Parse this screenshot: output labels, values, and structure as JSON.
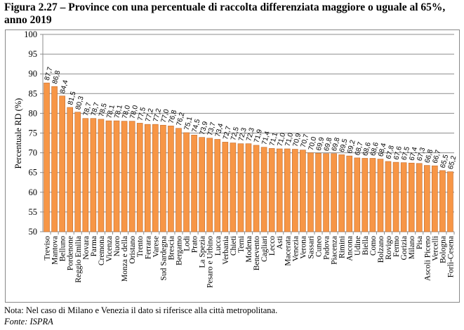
{
  "chart_data": {
    "type": "bar",
    "title": "Figura 2.27 – Province con una percentuale di raccolta differenziata maggiore o uguale al 65%, anno 2019",
    "xlabel": "",
    "ylabel": "Percentuale RD (%)",
    "ylim": [
      50,
      100
    ],
    "yticks": [
      50,
      55,
      60,
      65,
      70,
      75,
      80,
      85,
      90,
      95,
      100
    ],
    "grid": "horizontal",
    "bar_color": "#F79646",
    "bar_edge_color": "#C0692A",
    "categories": [
      "Treviso",
      "Mantova",
      "Belluno",
      "Pordenone",
      "Reggio Emilia",
      "Novara",
      "Parma",
      "Cremona",
      "Vicenza",
      "Nuoro",
      "Monza e della",
      "Oristano",
      "Trento",
      "Ferrara",
      "Varese",
      "Sud Sardegna",
      "Brescia",
      "Bergamo",
      "Lodi",
      "Prato",
      "La Spezia",
      "Pesaro e Urbino",
      "Lucca",
      "Verbania",
      "Chieti",
      "Terni",
      "Modena",
      "Benevento",
      "Cagliari",
      "Lecco",
      "Asti",
      "Macerata",
      "Venezia",
      "Verona",
      "Sassari",
      "Cuneo",
      "Padova",
      "Piacenza",
      "Rimini",
      "Ancona",
      "Udine",
      "Biella",
      "Como",
      "Bolzano",
      "Rovigo",
      "Fermo",
      "Gorizia",
      "Milano",
      "Pisa",
      "Ascoli Piceno",
      "Vercelli",
      "Bologna",
      "Forlì-Cesena"
    ],
    "values": [
      87.7,
      86.8,
      84.4,
      81.5,
      80.3,
      78.7,
      78.7,
      78.5,
      78.1,
      78.1,
      78.0,
      78.0,
      77.5,
      77.2,
      77.2,
      77.0,
      76.8,
      76.2,
      75.1,
      74.5,
      73.9,
      73.7,
      73.4,
      72.7,
      72.5,
      72.3,
      72.3,
      71.9,
      71.4,
      71.1,
      71.0,
      71.0,
      70.9,
      70.7,
      70.0,
      69.9,
      69.8,
      69.8,
      69.5,
      69.2,
      68.7,
      68.6,
      68.6,
      68.4,
      67.8,
      67.6,
      67.5,
      67.4,
      67.3,
      66.8,
      66.7,
      65.5,
      65.2
    ]
  },
  "caption": {
    "title": "Figura 2.27 – Province con una percentuale di raccolta differenziata maggiore o uguale al 65%, anno 2019",
    "note": "Nota: Nel caso di Milano e Venezia il dato si riferisce alla città metropolitana.",
    "source": "Fonte: ISPRA"
  }
}
